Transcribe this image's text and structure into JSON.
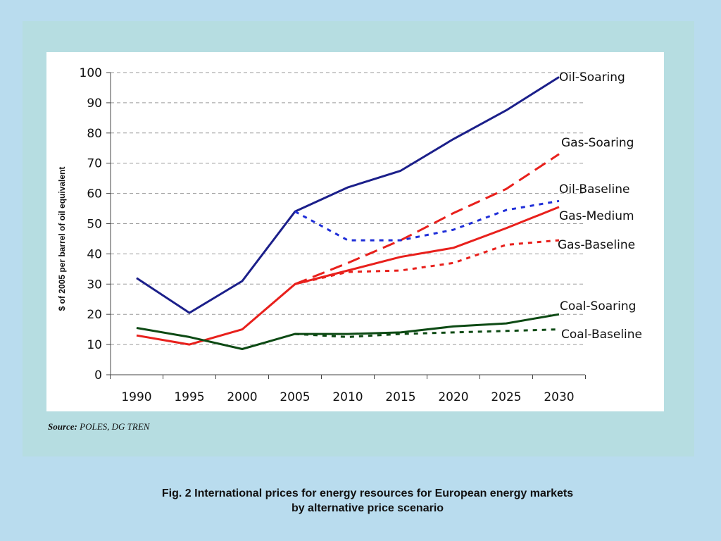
{
  "chart_data": {
    "type": "line",
    "title": "",
    "xlabel": "",
    "ylabel": "$ of 2005 per barrel of oil equivalent",
    "x": [
      1990,
      1995,
      2000,
      2005,
      2010,
      2015,
      2020,
      2025,
      2030
    ],
    "x_tick_labels": [
      "1990",
      "1995",
      "2000",
      "2005",
      "2010",
      "2015",
      "2020",
      "2025",
      "2030"
    ],
    "ylim": [
      0,
      100
    ],
    "y_ticks": [
      0,
      10,
      20,
      30,
      40,
      50,
      60,
      70,
      80,
      90,
      100
    ],
    "grid": "horizontal dashed",
    "legend": "labels at line ends (right)",
    "series": [
      {
        "name": "Oil-Soaring",
        "color": "#1b1f8a",
        "style": "solid",
        "x": [
          1990,
          1995,
          2000,
          2005,
          2010,
          2015,
          2020,
          2025,
          2030
        ],
        "values": [
          32,
          20.5,
          31,
          54,
          62,
          67.5,
          78,
          87.5,
          98.5
        ]
      },
      {
        "name": "Gas-Soaring",
        "color": "#e8201c",
        "style": "dashed",
        "x": [
          2005,
          2010,
          2015,
          2020,
          2025,
          2030
        ],
        "values": [
          30,
          37,
          44.5,
          53.5,
          61.5,
          73
        ]
      },
      {
        "name": "Oil-Baseline",
        "color": "#1f2ed8",
        "style": "dotted",
        "x": [
          2005,
          2010,
          2015,
          2020,
          2025,
          2030
        ],
        "values": [
          54,
          44.5,
          44.5,
          48,
          54.5,
          57.5
        ]
      },
      {
        "name": "Gas-Medium",
        "color": "#e8201c",
        "style": "solid",
        "x": [
          1990,
          1995,
          2000,
          2005,
          2010,
          2015,
          2020,
          2025,
          2030
        ],
        "values": [
          13,
          10,
          15,
          30,
          34.5,
          39,
          42,
          48.5,
          55.5
        ]
      },
      {
        "name": "Gas-Baseline",
        "color": "#e8201c",
        "style": "dotted",
        "x": [
          2005,
          2010,
          2015,
          2020,
          2025,
          2030
        ],
        "values": [
          30,
          34,
          34.5,
          37,
          43,
          44.5
        ]
      },
      {
        "name": "Coal-Soaring",
        "color": "#0d4a14",
        "style": "solid",
        "x": [
          1990,
          1995,
          2000,
          2005,
          2010,
          2015,
          2020,
          2025,
          2030
        ],
        "values": [
          15.5,
          12.5,
          8.5,
          13.5,
          13.5,
          14,
          16,
          17,
          20
        ]
      },
      {
        "name": "Coal-Baseline",
        "color": "#0d4a14",
        "style": "dotted",
        "x": [
          2005,
          2010,
          2015,
          2020,
          2025,
          2030
        ],
        "values": [
          13.5,
          12.5,
          13.5,
          14,
          14.5,
          15
        ]
      }
    ]
  },
  "source": {
    "label": "Source:",
    "text": "POLES, DG TREN"
  },
  "caption": {
    "line1": "Fig. 2 International prices for energy resources for European energy markets",
    "line2": "by alternative price scenario"
  }
}
